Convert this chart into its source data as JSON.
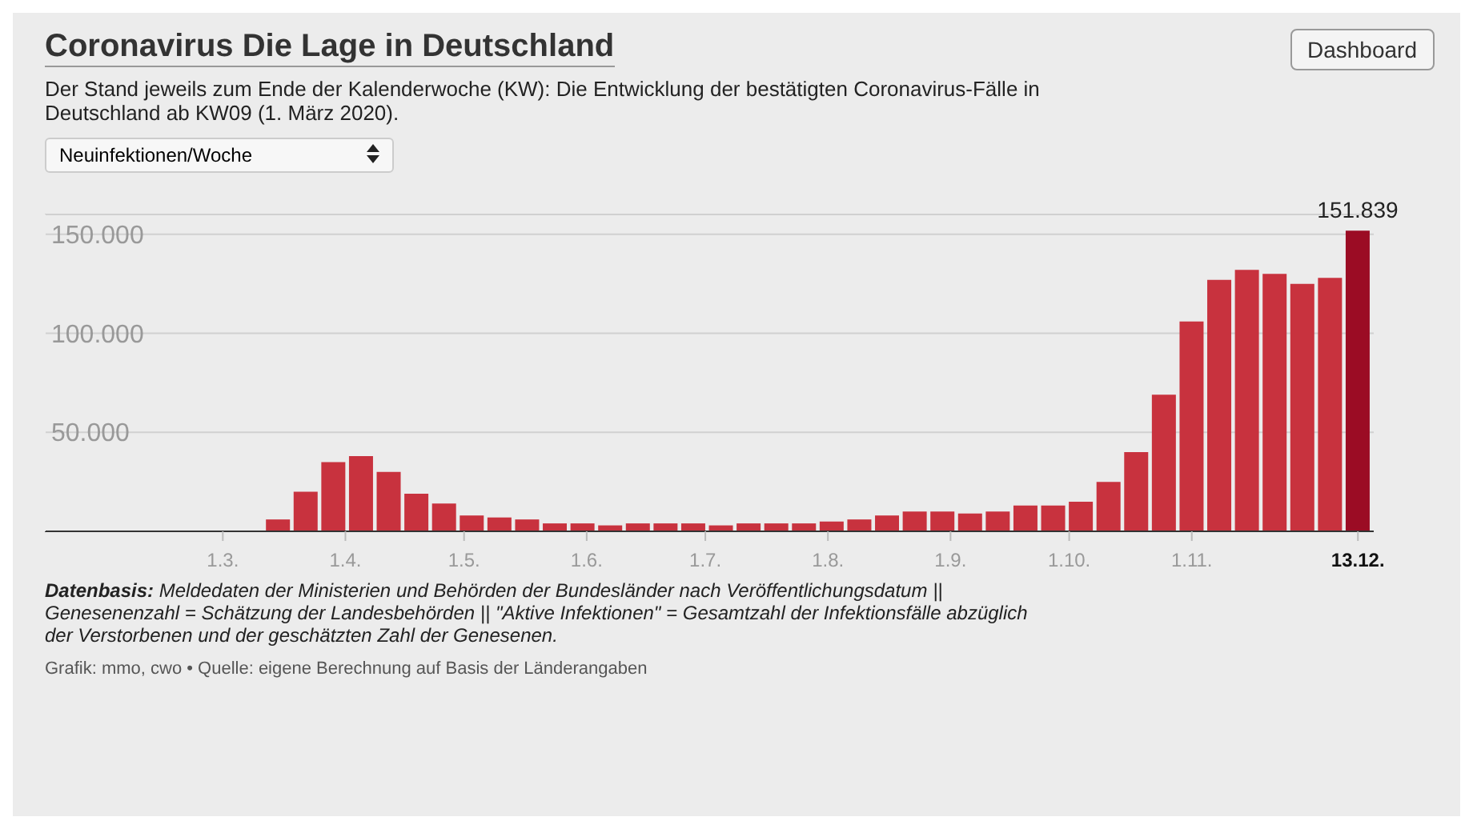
{
  "chart_data": {
    "type": "bar",
    "title": "Coronavirus Die Lage in Deutschland",
    "subtitle": "Der Stand jeweils zum Ende der Kalenderwoche (KW): Die Entwicklung der bestätigten Coronavirus-Fälle in Deutschland ab KW09 (1. März 2020).",
    "annotations": [
      "Neuinfektionen/Woche",
      "Datenbasis: Meldedaten der Ministerien und Behörden der Bundesländer nach Veröffentlichungsdatum || Genesenenzahl = Schätzung der Landesbehörden || \"Aktive Infektionen\" = Gesamtzahl der Infektionsfälle abzüglich der Verstorbenen und der geschätzten Zahl der Genesenen.",
      "Grafik: mmo, cwo • Quelle: eigene Berechnung auf Basis der Länderangaben",
      "Dashboard"
    ],
    "x": [
      "2020-03-15",
      "2020-03-22",
      "2020-03-29",
      "2020-04-05",
      "2020-04-12",
      "2020-04-19",
      "2020-04-26",
      "2020-05-03",
      "2020-05-10",
      "2020-05-17",
      "2020-05-24",
      "2020-05-31",
      "2020-06-07",
      "2020-06-14",
      "2020-06-21",
      "2020-06-28",
      "2020-07-05",
      "2020-07-12",
      "2020-07-19",
      "2020-07-26",
      "2020-08-02",
      "2020-08-09",
      "2020-08-16",
      "2020-08-23",
      "2020-08-30",
      "2020-09-06",
      "2020-09-13",
      "2020-09-20",
      "2020-09-27",
      "2020-10-04",
      "2020-10-11",
      "2020-10-18",
      "2020-10-25",
      "2020-11-01",
      "2020-11-08",
      "2020-11-15",
      "2020-11-22",
      "2020-11-29",
      "2020-12-06",
      "2020-12-13"
    ],
    "values": [
      6000,
      20000,
      35000,
      38000,
      30000,
      19000,
      14000,
      8000,
      7000,
      6000,
      4000,
      4000,
      3000,
      4000,
      4000,
      4000,
      3000,
      4000,
      4000,
      4000,
      5000,
      6000,
      8000,
      10000,
      10000,
      9000,
      10000,
      13000,
      13000,
      15000,
      25000,
      40000,
      69000,
      106000,
      127000,
      132000,
      130000,
      125000,
      128000,
      151839
    ],
    "colors": [
      "#c8323e",
      "#c8323e",
      "#c8323e",
      "#c8323e",
      "#c8323e",
      "#c8323e",
      "#c8323e",
      "#c8323e",
      "#c8323e",
      "#c8323e",
      "#c8323e",
      "#c8323e",
      "#c8323e",
      "#c8323e",
      "#c8323e",
      "#c8323e",
      "#c8323e",
      "#c8323e",
      "#c8323e",
      "#c8323e",
      "#c8323e",
      "#c8323e",
      "#c8323e",
      "#c8323e",
      "#c8323e",
      "#c8323e",
      "#c8323e",
      "#c8323e",
      "#c8323e",
      "#c8323e",
      "#c8323e",
      "#c8323e",
      "#c8323e",
      "#c8323e",
      "#c8323e",
      "#c8323e",
      "#c8323e",
      "#c8323e",
      "#c8323e",
      "#9b0c24"
    ],
    "value_labels": [
      null,
      null,
      null,
      null,
      null,
      null,
      null,
      null,
      null,
      null,
      null,
      null,
      null,
      null,
      null,
      null,
      null,
      null,
      null,
      null,
      null,
      null,
      null,
      null,
      null,
      null,
      null,
      null,
      null,
      null,
      null,
      null,
      null,
      null,
      null,
      null,
      null,
      null,
      null,
      "151.839"
    ],
    "xlim": [
      "2020-01-16",
      "2020-12-17"
    ],
    "xticks": [
      {
        "value": "2020-03-01",
        "label": "1.3."
      },
      {
        "value": "2020-04-01",
        "label": "1.4."
      },
      {
        "value": "2020-05-01",
        "label": "1.5."
      },
      {
        "value": "2020-06-01",
        "label": "1.6."
      },
      {
        "value": "2020-07-01",
        "label": "1.7."
      },
      {
        "value": "2020-08-01",
        "label": "1.8."
      },
      {
        "value": "2020-09-01",
        "label": "1.9."
      },
      {
        "value": "2020-10-01",
        "label": "1.10."
      },
      {
        "value": "2020-11-01",
        "label": "1.11."
      },
      {
        "value": "2020-12-13",
        "label": "13.12."
      }
    ],
    "ylim": [
      0,
      160000
    ],
    "yticks": [
      {
        "value": 0,
        "label": null
      },
      {
        "value": 50000,
        "label": "50.000"
      },
      {
        "value": 100000,
        "label": "100.000"
      },
      {
        "value": 150000,
        "label": "150.000"
      }
    ],
    "grid": "y"
  }
}
